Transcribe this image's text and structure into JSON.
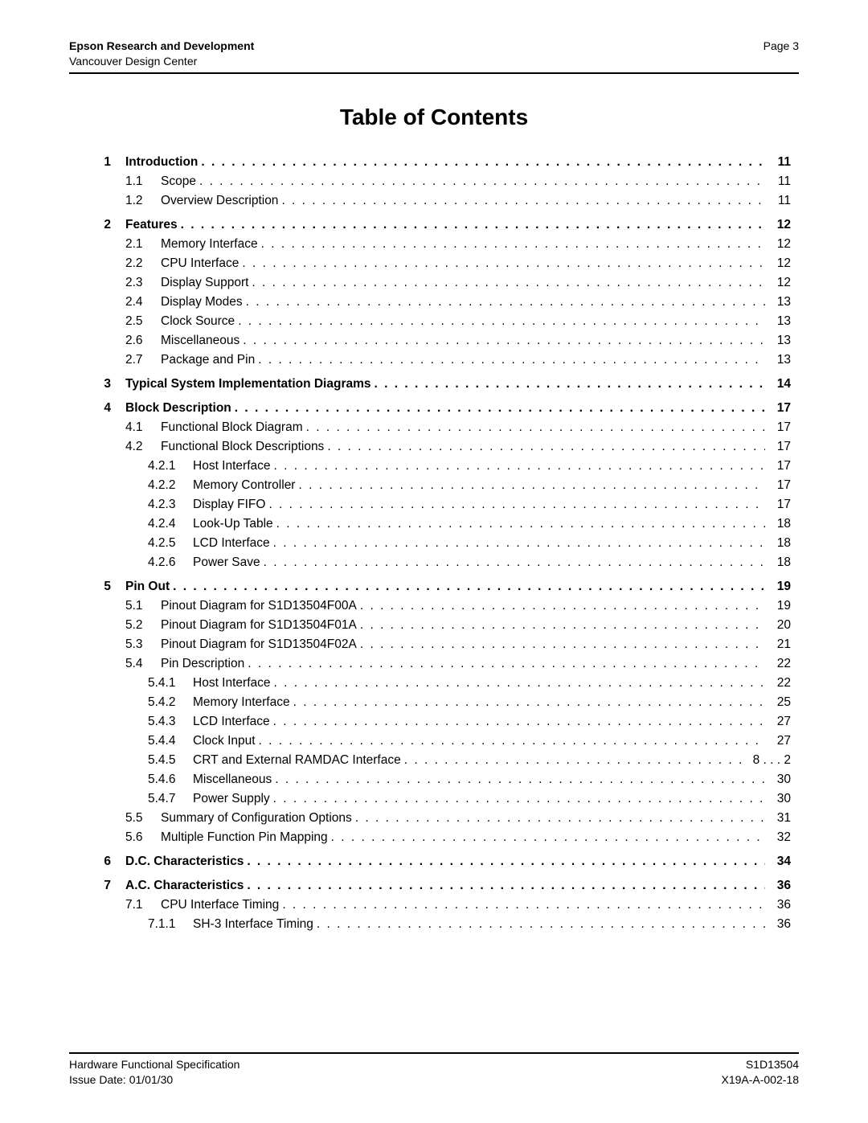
{
  "header": {
    "left_top": "Epson Research and Development",
    "left_bottom": "Vancouver Design Center",
    "right": "Page 3"
  },
  "title": "Table of Contents",
  "toc": [
    {
      "lvl": 0,
      "num": "1",
      "label": "Introduction",
      "page": "11",
      "bold": true
    },
    {
      "lvl": 1,
      "num": "1.1",
      "label": "Scope",
      "page": "11"
    },
    {
      "lvl": 1,
      "num": "1.2",
      "label": "Overview Description",
      "page": "11"
    },
    {
      "lvl": 0,
      "num": "2",
      "label": "Features",
      "page": "12",
      "bold": true
    },
    {
      "lvl": 1,
      "num": "2.1",
      "label": "Memory Interface",
      "page": "12"
    },
    {
      "lvl": 1,
      "num": "2.2",
      "label": "CPU Interface",
      "page": "12"
    },
    {
      "lvl": 1,
      "num": "2.3",
      "label": "Display Support",
      "page": "12"
    },
    {
      "lvl": 1,
      "num": "2.4",
      "label": "Display Modes",
      "page": "13"
    },
    {
      "lvl": 1,
      "num": "2.5",
      "label": "Clock Source",
      "page": "13"
    },
    {
      "lvl": 1,
      "num": "2.6",
      "label": "Miscellaneous",
      "page": "13"
    },
    {
      "lvl": 1,
      "num": "2.7",
      "label": "Package and Pin",
      "page": "13"
    },
    {
      "lvl": 0,
      "num": "3",
      "label": "Typical System Implementation Diagrams",
      "page": "14",
      "bold": true
    },
    {
      "lvl": 0,
      "num": "4",
      "label": "Block Description",
      "page": "17",
      "bold": true
    },
    {
      "lvl": 1,
      "num": "4.1",
      "label": "Functional Block Diagram",
      "page": "17"
    },
    {
      "lvl": 1,
      "num": "4.2",
      "label": "Functional Block Descriptions",
      "page": "17"
    },
    {
      "lvl": 2,
      "num": "4.2.1",
      "label": "Host Interface",
      "page": "17"
    },
    {
      "lvl": 2,
      "num": "4.2.2",
      "label": "Memory Controller",
      "page": "17"
    },
    {
      "lvl": 2,
      "num": "4.2.3",
      "label": "Display FIFO",
      "page": "17"
    },
    {
      "lvl": 2,
      "num": "4.2.4",
      "label": "Look-Up Table",
      "page": "18"
    },
    {
      "lvl": 2,
      "num": "4.2.5",
      "label": "LCD Interface",
      "page": "18"
    },
    {
      "lvl": 2,
      "num": "4.2.6",
      "label": "Power Save",
      "page": "18"
    },
    {
      "lvl": 0,
      "num": "5",
      "label": "Pin Out",
      "page": "19",
      "bold": true
    },
    {
      "lvl": 1,
      "num": "5.1",
      "label": "Pinout Diagram for S1D13504F00A",
      "page": "19"
    },
    {
      "lvl": 1,
      "num": "5.2",
      "label": "Pinout Diagram for S1D13504F01A",
      "page": "20"
    },
    {
      "lvl": 1,
      "num": "5.3",
      "label": "Pinout Diagram for S1D13504F02A",
      "page": "21"
    },
    {
      "lvl": 1,
      "num": "5.4",
      "label": "Pin Description",
      "page": "22"
    },
    {
      "lvl": 2,
      "num": "5.4.1",
      "label": "Host Interface",
      "page": "22"
    },
    {
      "lvl": 2,
      "num": "5.4.2",
      "label": "Memory Interface",
      "page": "25"
    },
    {
      "lvl": 2,
      "num": "5.4.3",
      "label": "LCD Interface",
      "page": "27"
    },
    {
      "lvl": 2,
      "num": "5.4.4",
      "label": "Clock Input",
      "page": "27"
    },
    {
      "lvl": 2,
      "num": "5.4.5",
      "label": "CRT and External RAMDAC Interface",
      "page": "8 .  .  . 2"
    },
    {
      "lvl": 2,
      "num": "5.4.6",
      "label": "Miscellaneous",
      "page": "30"
    },
    {
      "lvl": 2,
      "num": "5.4.7",
      "label": "Power Supply",
      "page": "30"
    },
    {
      "lvl": 1,
      "num": "5.5",
      "label": "Summary of Configuration Options",
      "page": "31"
    },
    {
      "lvl": 1,
      "num": "5.6",
      "label": "Multiple Function Pin Mapping",
      "page": "32"
    },
    {
      "lvl": 0,
      "num": "6",
      "label": "D.C. Characteristics",
      "page": "34",
      "bold": true
    },
    {
      "lvl": 0,
      "num": "7",
      "label": "A.C. Characteristics",
      "page": "36",
      "bold": true
    },
    {
      "lvl": 1,
      "num": "7.1",
      "label": "CPU Interface Timing",
      "page": "36"
    },
    {
      "lvl": 2,
      "num": "7.1.1",
      "label": "SH-3 Interface Timing",
      "page": "36"
    }
  ],
  "footer": {
    "left_top": "Hardware Functional Specification",
    "left_bottom": "Issue Date: 01/01/30",
    "right_top": "S1D13504",
    "right_bottom": "X19A-A-002-18"
  },
  "colors": {
    "text": "#000000",
    "rule": "#000000",
    "background": "#ffffff"
  },
  "typography": {
    "base_fontsize_pt": 11,
    "title_fontsize_pt": 20,
    "font_family": "Arial"
  }
}
